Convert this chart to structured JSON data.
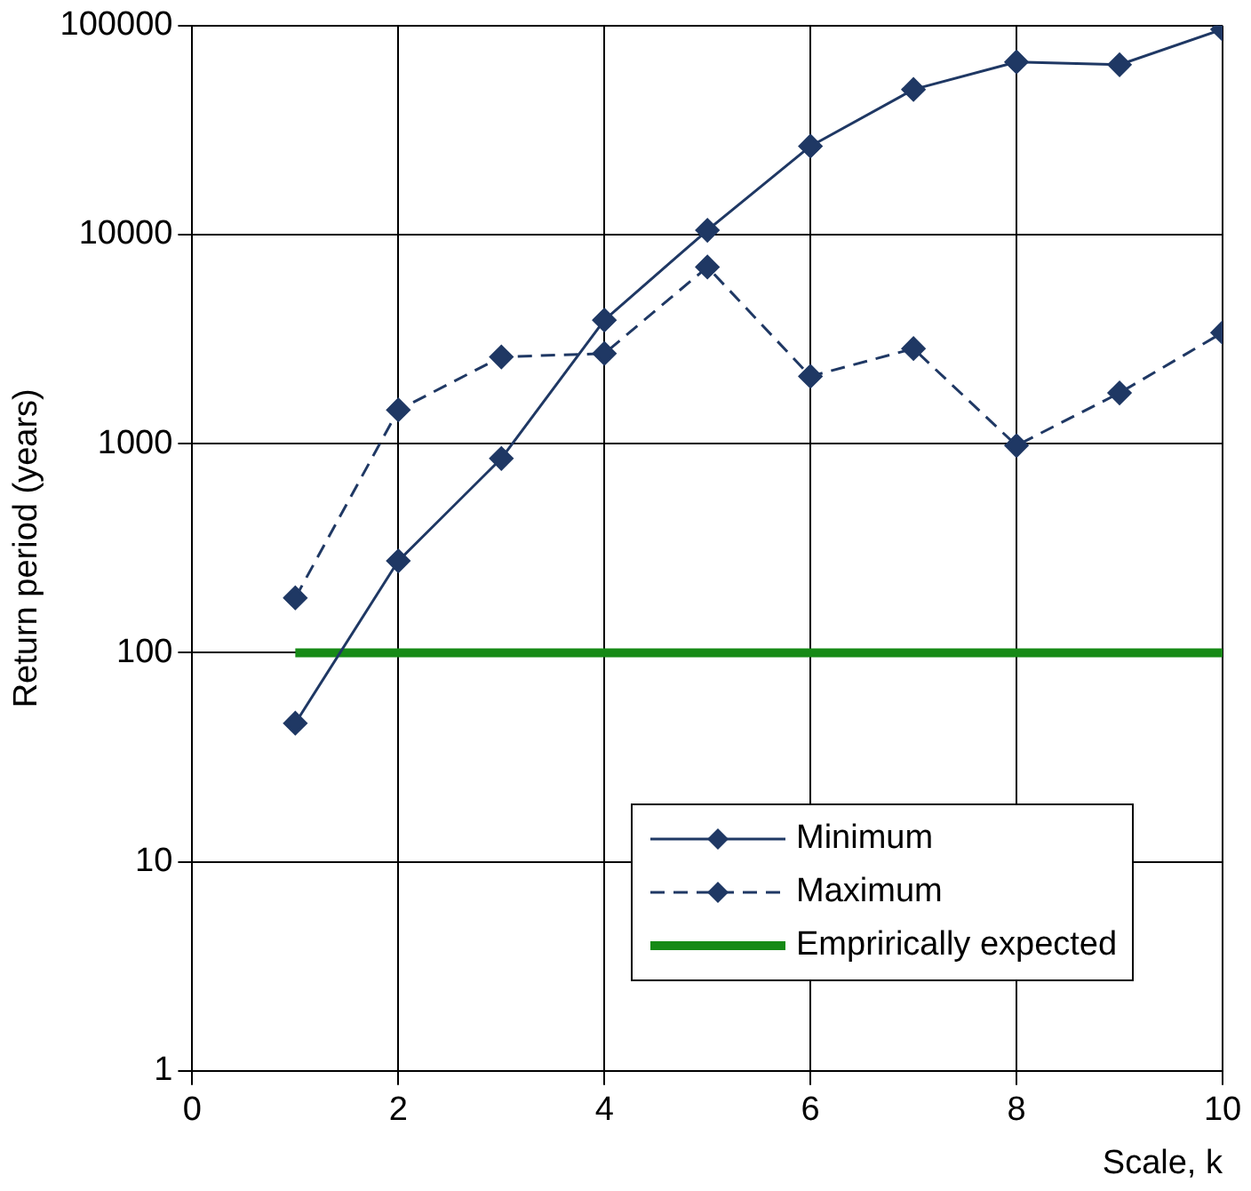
{
  "chart_data": {
    "type": "line",
    "xlabel": "Scale, k",
    "ylabel": "Return period (years)",
    "x": [
      1,
      2,
      3,
      4,
      5,
      6,
      7,
      8,
      9,
      10
    ],
    "series": [
      {
        "name": "Minimum",
        "color": "#1f3864",
        "values": [
          46,
          275,
          850,
          3900,
          10500,
          26500,
          49500,
          67000,
          65000,
          96000
        ],
        "marker": "diamond",
        "line_style": "solid"
      },
      {
        "name": "Maximum",
        "color": "#1f3864",
        "values": [
          183,
          1450,
          2600,
          2700,
          7000,
          2100,
          2850,
          980,
          1750,
          3400
        ],
        "marker": "diamond",
        "line_style": "dashed"
      },
      {
        "name": "Emprirically expected",
        "color": "#168a16",
        "x": [
          1,
          10
        ],
        "values": [
          100,
          100
        ],
        "marker": "none",
        "line_style": "solid"
      }
    ],
    "xlim": [
      0,
      10
    ],
    "xticks": [
      0,
      2,
      4,
      6,
      8,
      10
    ],
    "ylim": [
      1,
      100000
    ],
    "yticks": [
      1,
      10,
      100,
      1000,
      10000,
      100000
    ],
    "log": "y",
    "grid": true,
    "legend": "bottom right"
  }
}
